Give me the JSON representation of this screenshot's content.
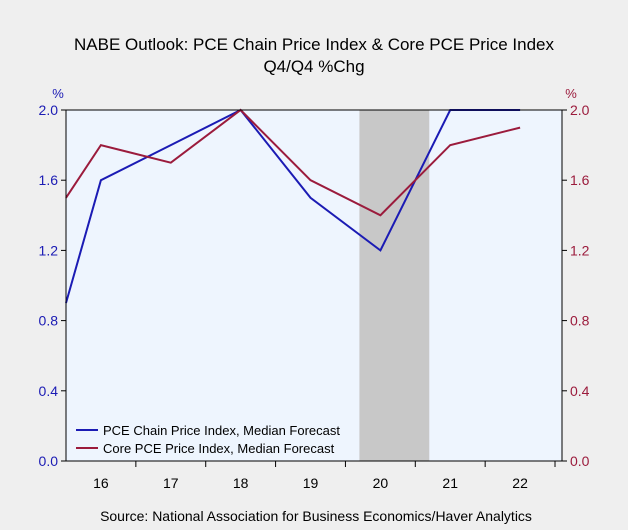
{
  "chart_data": {
    "type": "line",
    "title": "NABE Outlook: PCE Chain Price Index & Core PCE Price Index",
    "subtitle": "Q4/Q4 %Chg",
    "y_unit_left": "%",
    "y_unit_right": "%",
    "categories": [
      "16",
      "17",
      "18",
      "19",
      "20",
      "21",
      "22"
    ],
    "x_domain": [
      2015.5,
      2022.6
    ],
    "ylim": [
      0.0,
      2.0
    ],
    "yticks": [
      "0.0",
      "0.4",
      "0.8",
      "1.2",
      "1.6",
      "2.0"
    ],
    "grid": false,
    "legend_position": "bottom-left",
    "shaded_region": {
      "x_start": 2019.7,
      "x_end": 2020.7,
      "color": "#c8c8c8"
    },
    "series": [
      {
        "name": "PCE Chain Price Index, Median Forecast",
        "color": "#1b1bb4",
        "points": [
          [
            2015.5,
            0.9
          ],
          [
            2016,
            1.6
          ],
          [
            2017,
            1.8
          ],
          [
            2018,
            2.0
          ],
          [
            2019,
            1.5
          ],
          [
            2020,
            1.2
          ],
          [
            2021,
            2.0
          ],
          [
            2022,
            2.0
          ]
        ]
      },
      {
        "name": "Core PCE Price Index, Median Forecast",
        "color": "#9b1b3c",
        "points": [
          [
            2015.5,
            1.5
          ],
          [
            2016,
            1.8
          ],
          [
            2017,
            1.7
          ],
          [
            2018,
            2.0
          ],
          [
            2019,
            1.6
          ],
          [
            2020,
            1.4
          ],
          [
            2021,
            1.8
          ],
          [
            2022,
            1.9
          ]
        ]
      }
    ],
    "source": "Source:  National Association for Business Economics/Haver Analytics",
    "colors": {
      "background": "#efefef",
      "plot_background": "#eef5fe",
      "left_axis": "#1b1bb4",
      "right_axis": "#9b1b3c"
    }
  }
}
